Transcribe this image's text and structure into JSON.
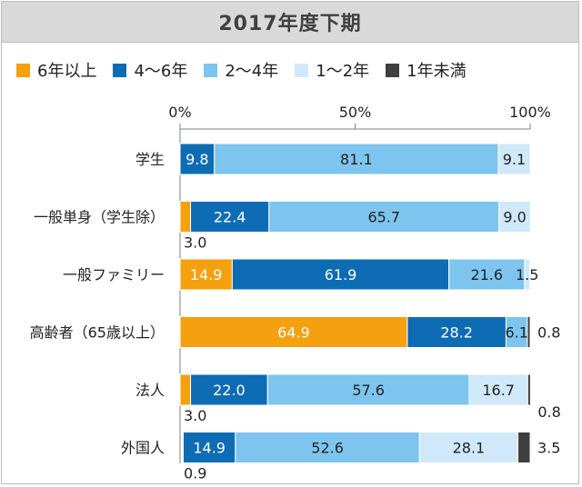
{
  "chart_data": {
    "type": "bar",
    "orientation": "horizontal",
    "stacked": true,
    "title": "2017年度下期",
    "categories": [
      "学生",
      "一般単身（学生除）",
      "一般ファミリー",
      "高齢者（65歳以上）",
      "法人",
      "外国人"
    ],
    "series": [
      {
        "name": "6年以上",
        "color": "#f5a00f",
        "values": [
          0.0,
          3.0,
          14.9,
          64.9,
          3.0,
          0.0
        ]
      },
      {
        "name": "4～6年",
        "color": "#0e6cb4",
        "values": [
          9.8,
          22.4,
          61.9,
          28.2,
          22.0,
          14.9
        ]
      },
      {
        "name": "2～4年",
        "color": "#7dc4ee",
        "values": [
          81.1,
          65.7,
          21.6,
          6.1,
          57.6,
          52.6
        ]
      },
      {
        "name": "1～2年",
        "color": "#cfe9fa",
        "values": [
          9.1,
          9.0,
          1.5,
          0.0,
          16.7,
          28.1
        ]
      },
      {
        "name": "1年未満",
        "color": "#3f3f3f",
        "values": [
          0.0,
          0.0,
          0.0,
          0.8,
          0.8,
          3.5
        ]
      }
    ],
    "gap_values": [
      0.0,
      0.0,
      0.0,
      0.0,
      0.0,
      0.9
    ],
    "labels": [
      [
        {
          "series": 1,
          "text": "9.8",
          "placement": "inside"
        },
        {
          "series": 2,
          "text": "81.1",
          "placement": "inside"
        },
        {
          "series": 3,
          "text": "9.1",
          "placement": "inside"
        }
      ],
      [
        {
          "series": 0,
          "text": "3.0",
          "placement": "below-start"
        },
        {
          "series": 1,
          "text": "22.4",
          "placement": "inside"
        },
        {
          "series": 2,
          "text": "65.7",
          "placement": "inside"
        },
        {
          "series": 3,
          "text": "9.0",
          "placement": "inside"
        }
      ],
      [
        {
          "series": 0,
          "text": "14.9",
          "placement": "inside"
        },
        {
          "series": 1,
          "text": "61.9",
          "placement": "inside"
        },
        {
          "series": 2,
          "text": "21.6",
          "placement": "inside"
        },
        {
          "series": 3,
          "text": "1.5",
          "placement": "inside"
        }
      ],
      [
        {
          "series": 0,
          "text": "64.9",
          "placement": "inside"
        },
        {
          "series": 1,
          "text": "28.2",
          "placement": "inside"
        },
        {
          "series": 2,
          "text": "6.1",
          "placement": "inside"
        },
        {
          "series": 4,
          "text": "0.8",
          "placement": "right"
        }
      ],
      [
        {
          "series": 0,
          "text": "3.0",
          "placement": "below-start"
        },
        {
          "series": 1,
          "text": "22.0",
          "placement": "inside"
        },
        {
          "series": 2,
          "text": "57.6",
          "placement": "inside"
        },
        {
          "series": 3,
          "text": "16.7",
          "placement": "inside"
        },
        {
          "series": 4,
          "text": "0.8",
          "placement": "right-low"
        }
      ],
      [
        {
          "series": -1,
          "text": "0.9",
          "placement": "below-start"
        },
        {
          "series": 1,
          "text": "14.9",
          "placement": "inside"
        },
        {
          "series": 2,
          "text": "52.6",
          "placement": "inside"
        },
        {
          "series": 3,
          "text": "28.1",
          "placement": "inside"
        },
        {
          "series": 4,
          "text": "3.5",
          "placement": "right"
        }
      ]
    ],
    "xaxis": {
      "ticks": [
        0,
        50,
        100
      ],
      "tick_labels": [
        "0%",
        "50%",
        "100%"
      ],
      "position": "top",
      "xlim": [
        0,
        100
      ]
    },
    "legend_position": "top",
    "grid": false
  }
}
